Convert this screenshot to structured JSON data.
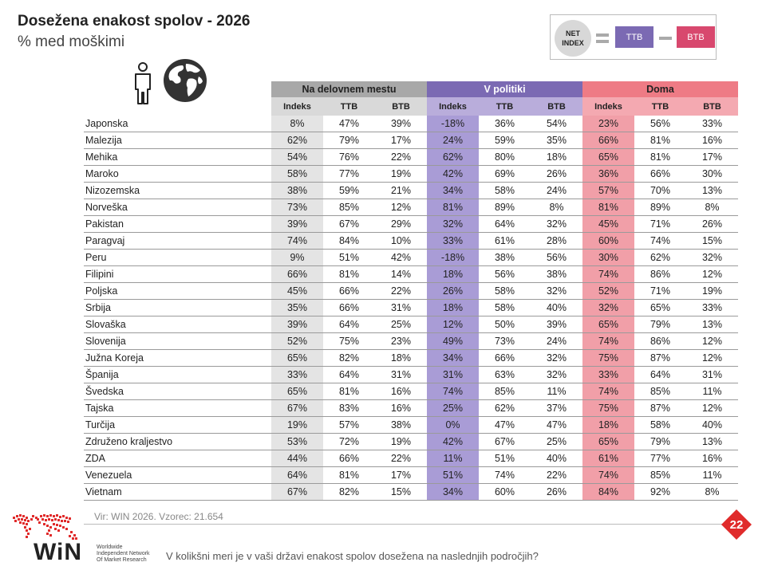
{
  "header": {
    "title": "Dosežena enakost spolov - 2026",
    "subtitle": "% med moškimi"
  },
  "legend": {
    "net_index": "NET INDEX",
    "ttb": "TTB",
    "btb": "BTB",
    "colors": {
      "ttb": "#7b6ab3",
      "btb": "#d8486e"
    }
  },
  "icons": [
    "person-icon",
    "globe-icon"
  ],
  "chart_data": {
    "type": "table",
    "groups": [
      "Na delovnem mestu",
      "V politiki",
      "Doma"
    ],
    "columns": [
      "Indeks",
      "TTB",
      "BTB"
    ],
    "group_colors": [
      "#a8a8a8",
      "#7b6ab3",
      "#ee7b85"
    ],
    "rows": [
      {
        "country": "Japonska",
        "values": [
          "8%",
          "47%",
          "39%",
          "-18%",
          "36%",
          "54%",
          "23%",
          "56%",
          "33%"
        ]
      },
      {
        "country": "Malezija",
        "values": [
          "62%",
          "79%",
          "17%",
          "24%",
          "59%",
          "35%",
          "66%",
          "81%",
          "16%"
        ]
      },
      {
        "country": "Mehika",
        "values": [
          "54%",
          "76%",
          "22%",
          "62%",
          "80%",
          "18%",
          "65%",
          "81%",
          "17%"
        ]
      },
      {
        "country": "Maroko",
        "values": [
          "58%",
          "77%",
          "19%",
          "42%",
          "69%",
          "26%",
          "36%",
          "66%",
          "30%"
        ]
      },
      {
        "country": "Nizozemska",
        "values": [
          "38%",
          "59%",
          "21%",
          "34%",
          "58%",
          "24%",
          "57%",
          "70%",
          "13%"
        ]
      },
      {
        "country": "Norveška",
        "values": [
          "73%",
          "85%",
          "12%",
          "81%",
          "89%",
          "8%",
          "81%",
          "89%",
          "8%"
        ]
      },
      {
        "country": "Pakistan",
        "values": [
          "39%",
          "67%",
          "29%",
          "32%",
          "64%",
          "32%",
          "45%",
          "71%",
          "26%"
        ]
      },
      {
        "country": "Paragvaj",
        "values": [
          "74%",
          "84%",
          "10%",
          "33%",
          "61%",
          "28%",
          "60%",
          "74%",
          "15%"
        ]
      },
      {
        "country": "Peru",
        "values": [
          "9%",
          "51%",
          "42%",
          "-18%",
          "38%",
          "56%",
          "30%",
          "62%",
          "32%"
        ]
      },
      {
        "country": "Filipini",
        "values": [
          "66%",
          "81%",
          "14%",
          "18%",
          "56%",
          "38%",
          "74%",
          "86%",
          "12%"
        ]
      },
      {
        "country": "Poljska",
        "values": [
          "45%",
          "66%",
          "22%",
          "26%",
          "58%",
          "32%",
          "52%",
          "71%",
          "19%"
        ]
      },
      {
        "country": "Srbija",
        "values": [
          "35%",
          "66%",
          "31%",
          "18%",
          "58%",
          "40%",
          "32%",
          "65%",
          "33%"
        ]
      },
      {
        "country": "Slovaška",
        "values": [
          "39%",
          "64%",
          "25%",
          "12%",
          "50%",
          "39%",
          "65%",
          "79%",
          "13%"
        ]
      },
      {
        "country": "Slovenija",
        "values": [
          "52%",
          "75%",
          "23%",
          "49%",
          "73%",
          "24%",
          "74%",
          "86%",
          "12%"
        ]
      },
      {
        "country": "Južna Koreja",
        "values": [
          "65%",
          "82%",
          "18%",
          "34%",
          "66%",
          "32%",
          "75%",
          "87%",
          "12%"
        ]
      },
      {
        "country": "Španija",
        "values": [
          "33%",
          "64%",
          "31%",
          "31%",
          "63%",
          "32%",
          "33%",
          "64%",
          "31%"
        ]
      },
      {
        "country": "Švedska",
        "values": [
          "65%",
          "81%",
          "16%",
          "74%",
          "85%",
          "11%",
          "74%",
          "85%",
          "11%"
        ]
      },
      {
        "country": "Tajska",
        "values": [
          "67%",
          "83%",
          "16%",
          "25%",
          "62%",
          "37%",
          "75%",
          "87%",
          "12%"
        ]
      },
      {
        "country": "Turčija",
        "values": [
          "19%",
          "57%",
          "38%",
          "0%",
          "47%",
          "47%",
          "18%",
          "58%",
          "40%"
        ]
      },
      {
        "country": "Združeno kraljestvo",
        "values": [
          "53%",
          "72%",
          "19%",
          "42%",
          "67%",
          "25%",
          "65%",
          "79%",
          "13%"
        ]
      },
      {
        "country": "ZDA",
        "values": [
          "44%",
          "66%",
          "22%",
          "11%",
          "51%",
          "40%",
          "61%",
          "77%",
          "16%"
        ]
      },
      {
        "country": "Venezuela",
        "values": [
          "64%",
          "81%",
          "17%",
          "51%",
          "74%",
          "22%",
          "74%",
          "85%",
          "11%"
        ]
      },
      {
        "country": "Vietnam",
        "values": [
          "67%",
          "82%",
          "15%",
          "34%",
          "60%",
          "26%",
          "84%",
          "92%",
          "8%"
        ]
      }
    ]
  },
  "footer": {
    "source": "Vir: WIN 2026.  Vzorec: 21.654",
    "page_number": "22",
    "logo_text": "WiN",
    "logo_subtitle": [
      "Worldwide",
      "Independent Network",
      "Of Market Research"
    ],
    "question": "V kolikšni meri je v vaši državi enakost spolov dosežena na naslednjih področjih?"
  }
}
